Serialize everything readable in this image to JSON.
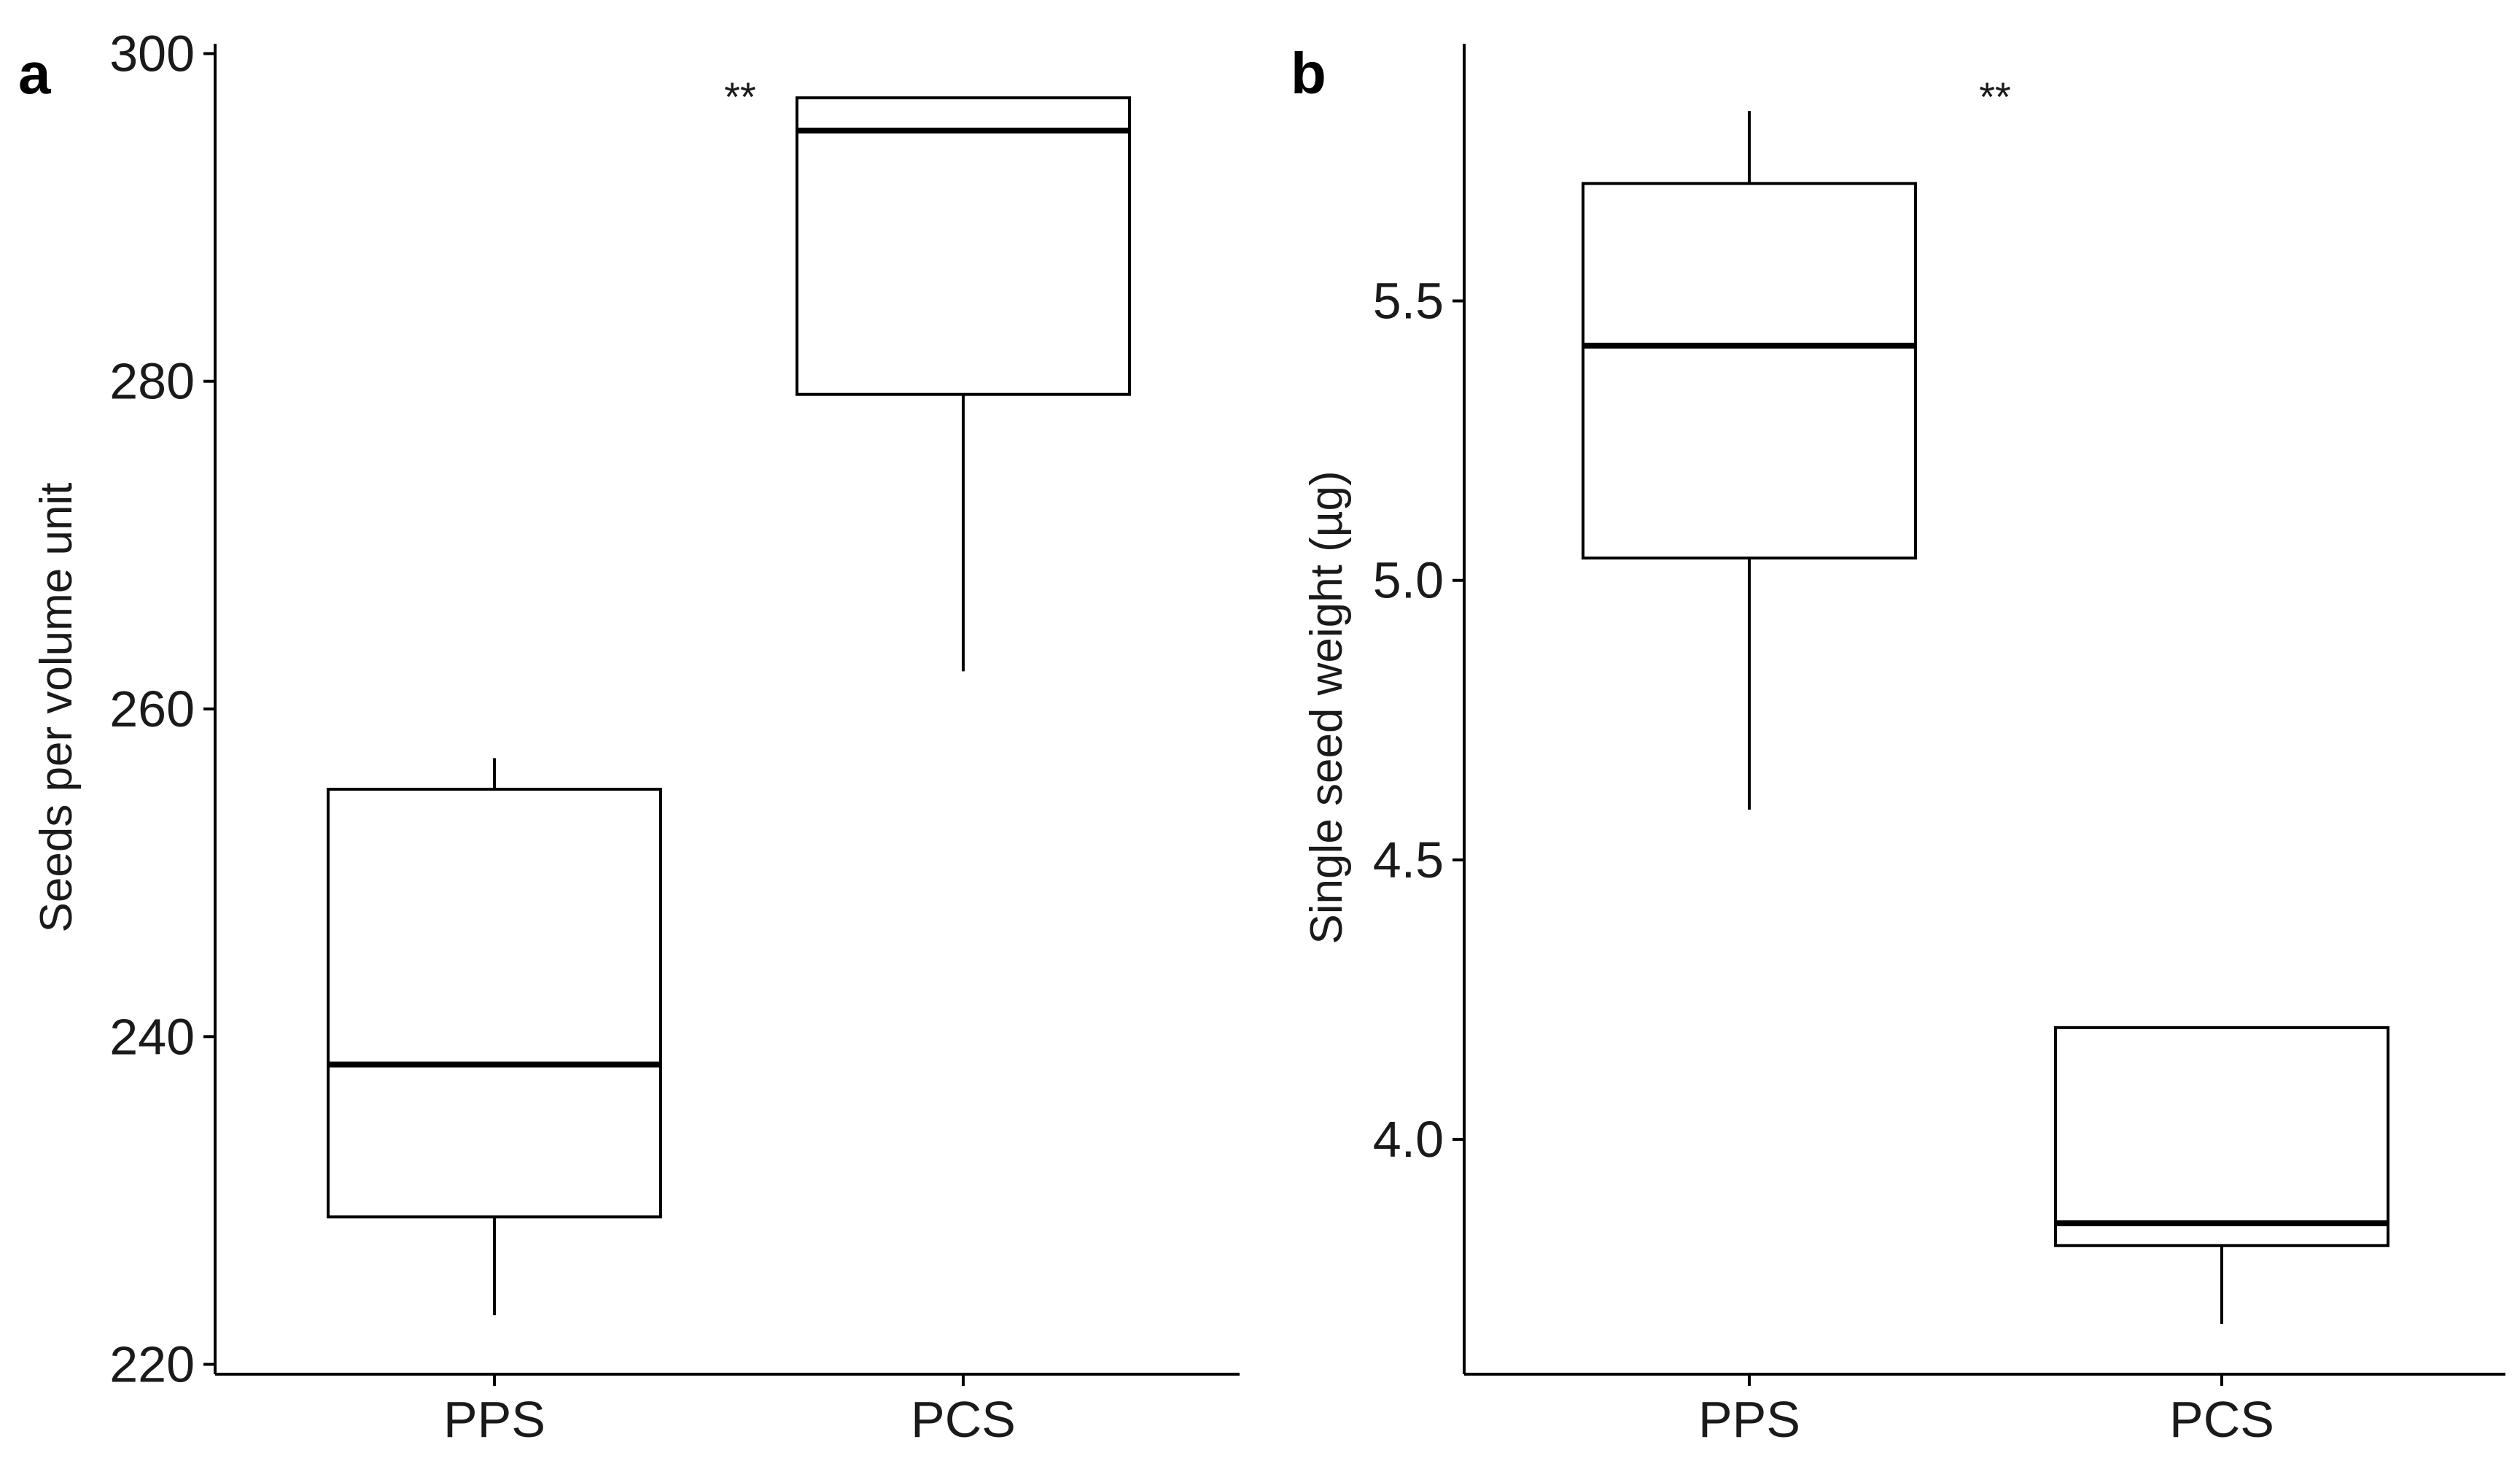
{
  "chart_data": [
    {
      "type": "boxplot",
      "panel_label": "a",
      "ylabel": "Seeds per volume unit",
      "xlabel": "",
      "categories": [
        "PPS",
        "PCS"
      ],
      "ylim": [
        219.4,
        300.6
      ],
      "yticks": [
        220,
        240,
        260,
        280,
        300
      ],
      "ytick_labels": [
        "220",
        "240",
        "260",
        "280",
        "300"
      ],
      "boxes": [
        {
          "category": "PPS",
          "min": 223,
          "q1": 229,
          "median": 238.3,
          "q3": 255.1,
          "max": 257
        },
        {
          "category": "PCS",
          "min": 262.3,
          "q1": 279.2,
          "median": 295.3,
          "q3": 297.3,
          "max": 297.3
        }
      ],
      "annotation": "**",
      "grid": false,
      "legend": "none"
    },
    {
      "type": "boxplot",
      "panel_label": "b",
      "ylabel": "Single seed weight (µg)",
      "xlabel": "",
      "categories": [
        "PPS",
        "PCS"
      ],
      "ylim": [
        3.58,
        5.96
      ],
      "yticks": [
        4.0,
        4.5,
        5.0,
        5.5
      ],
      "ytick_labels": [
        "4.0",
        "4.5",
        "5.0",
        "5.5"
      ],
      "boxes": [
        {
          "category": "PPS",
          "min": 4.59,
          "q1": 5.04,
          "median": 5.42,
          "q3": 5.71,
          "max": 5.84
        },
        {
          "category": "PCS",
          "min": 3.67,
          "q1": 3.81,
          "median": 3.85,
          "q3": 4.2,
          "max": 4.2
        }
      ],
      "annotation": "**",
      "grid": false,
      "legend": "none"
    }
  ],
  "colors": {
    "box_stroke": "#000000",
    "box_fill": "#ffffff",
    "axis": "#000000",
    "text": "#1a1a1a"
  }
}
